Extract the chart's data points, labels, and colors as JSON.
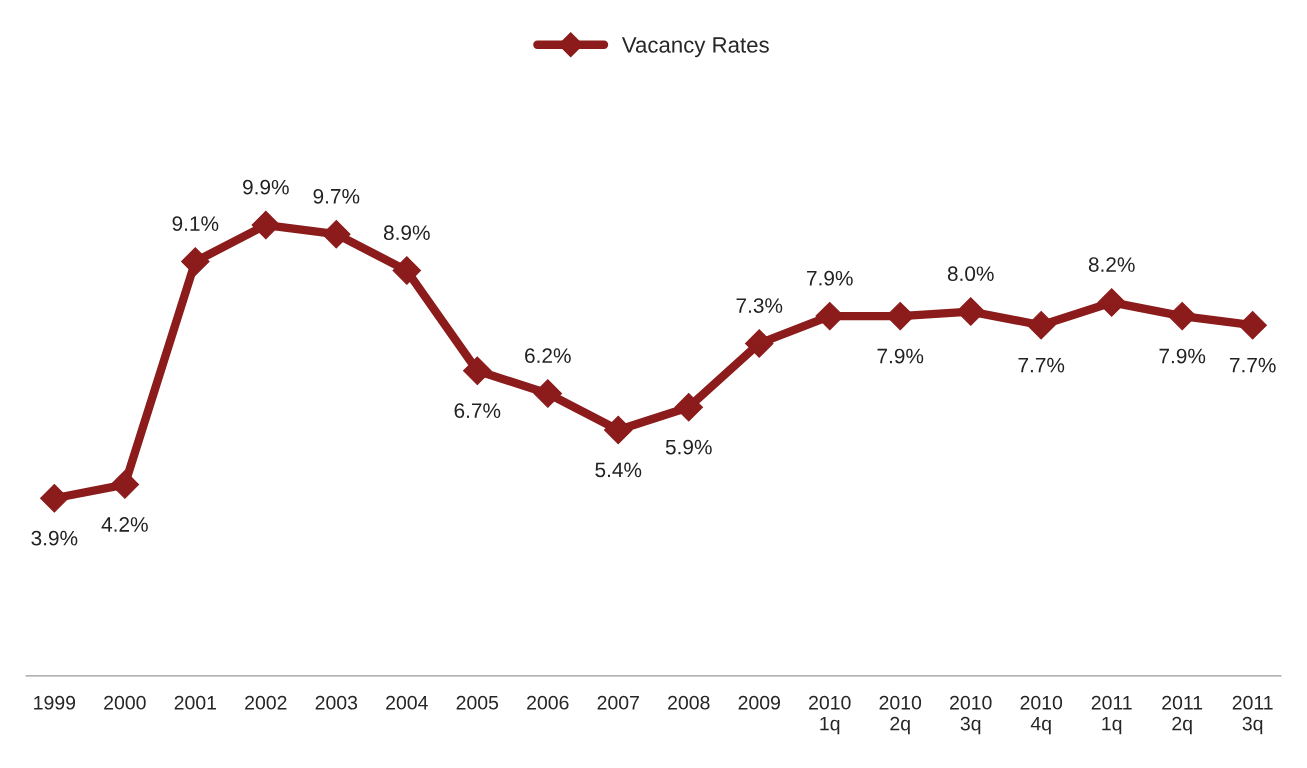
{
  "chart_data": {
    "type": "line",
    "categories": [
      "1999",
      "2000",
      "2001",
      "2002",
      "2003",
      "2004",
      "2005",
      "2006",
      "2007",
      "2008",
      "2009",
      "2010\n1q",
      "2010\n2q",
      "2010\n3q",
      "2010\n4q",
      "2011\n1q",
      "2011\n2q",
      "2011\n3q"
    ],
    "series": [
      {
        "name": "Vacancy Rates",
        "color": "#8c1b1b",
        "values": [
          3.9,
          4.2,
          9.1,
          9.9,
          9.7,
          8.9,
          6.7,
          6.2,
          5.4,
          5.9,
          7.3,
          7.9,
          7.9,
          8.0,
          7.7,
          8.2,
          7.9,
          7.7
        ],
        "value_labels": [
          "3.9%",
          "4.2%",
          "9.1%",
          "9.9%",
          "9.7%",
          "8.9%",
          "6.7%",
          "6.2%",
          "5.4%",
          "5.9%",
          "7.3%",
          "7.9%",
          "7.9%",
          "8.0%",
          "7.7%",
          "8.2%",
          "7.9%",
          "7.7%"
        ]
      }
    ],
    "marker": "diamond",
    "line_style": "solid",
    "legend": "top",
    "grid": false
  }
}
